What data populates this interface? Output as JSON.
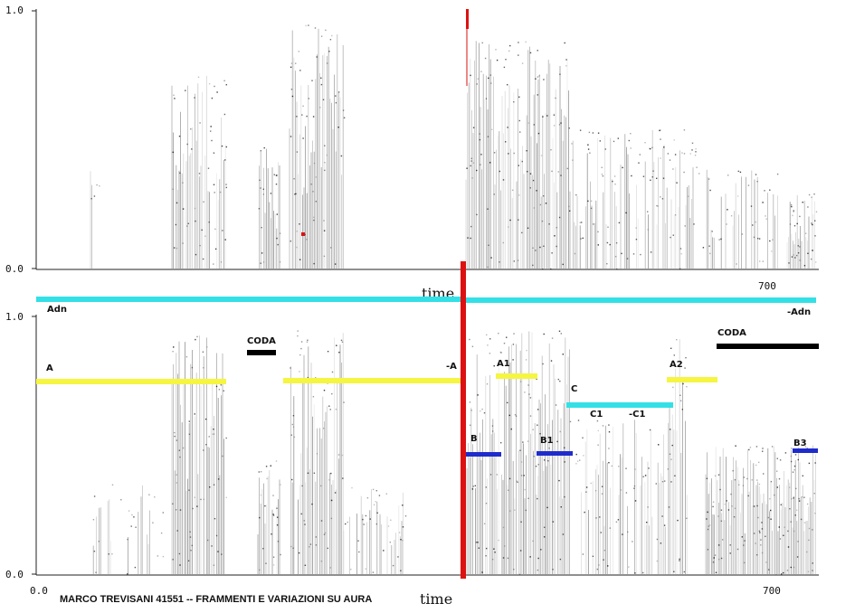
{
  "top_panel": {
    "y_top_label": "1.0",
    "y_bottom_label": "0.0",
    "x_axis_title": "time",
    "x_tick_label": "700"
  },
  "bottom_panel": {
    "y_top_label": "1.0",
    "y_bottom_label": "0.0",
    "x_left_label": "0.0",
    "x_tick_label": "700",
    "x_axis_title": "time"
  },
  "caption": "MARCO TREVISANI 41551 -- FRAMMENTI E VARIAZIONI SU AURA",
  "section_labels": {
    "adn": "Adn",
    "neg_adn": "-Adn",
    "a": "A",
    "neg_a": "-A",
    "a1": "A1",
    "a2": "A2",
    "coda_1": "CODA",
    "coda_2": "CODA",
    "b": "B",
    "b1": "B1",
    "b3": "B3",
    "c": "C",
    "c1": "C1",
    "neg_c1": "-C1"
  },
  "colors": {
    "cyan": "#33e0e6",
    "yellow": "#f5f542",
    "black": "#000000",
    "blue": "#1f2ccc",
    "red": "#dd1111",
    "axis": "#222222"
  }
}
